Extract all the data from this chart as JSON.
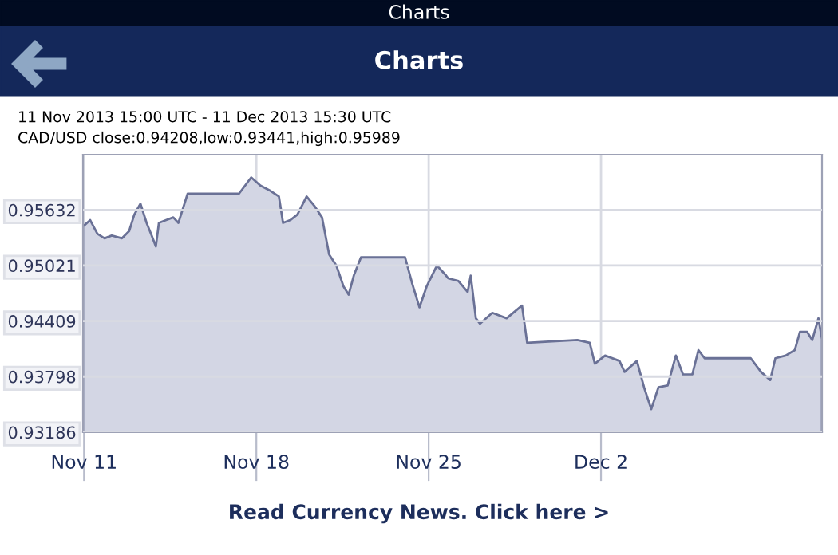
{
  "chart_data": {
    "type": "area",
    "title": "Charts",
    "subtitle": "11 Nov 2013 15:00 UTC - 11 Dec 2013 15:30 UTC",
    "annotations": [
      "Charts",
      "CAD/USD close:0.94208,low:0.93441,high:0.95989",
      "Read Currency News. Click here >"
    ],
    "x": [
      "2013-11-11T15:00",
      "2013-11-11T16:00",
      "2013-11-11T22:00",
      "2013-11-12T05:00",
      "2013-11-12T12:00",
      "2013-11-12T19:00",
      "2013-11-13T05:00",
      "2013-11-13T12:00",
      "2013-11-13T17:00",
      "2013-11-13T23:00",
      "2013-11-14T05:00",
      "2013-11-14T10:00",
      "2013-11-14T14:00",
      "2013-11-14T17:00",
      "2013-11-15T00:00",
      "2013-11-15T07:00",
      "2013-11-15T12:00",
      "2013-11-15T21:00",
      "2013-11-17T23:00",
      "2013-11-18T11:00",
      "2013-11-18T20:00",
      "2013-11-19T06:00",
      "2013-11-19T14:00",
      "2013-11-19T18:00",
      "2013-11-20T01:00",
      "2013-11-20T08:00",
      "2013-11-20T17:00",
      "2013-11-21T01:00",
      "2013-11-21T08:00",
      "2013-11-21T15:00",
      "2013-11-21T22:00",
      "2013-11-22T05:00",
      "2013-11-22T10:00",
      "2013-11-22T15:00",
      "2013-11-22T22:00",
      "2013-11-24T17:00",
      "2013-11-25T00:00",
      "2013-11-25T07:00",
      "2013-11-25T14:00",
      "2013-11-26T00:00",
      "2013-11-26T09:00",
      "2013-11-26T11:00",
      "2013-11-26T21:00",
      "2013-11-27T06:00",
      "2013-11-27T09:00",
      "2013-11-27T14:00",
      "2013-11-27T18:00",
      "2013-11-28T06:00",
      "2013-11-28T20:00",
      "2013-11-29T11:00",
      "2013-11-29T16:00",
      "2013-12-01T17:00",
      "2013-12-02T05:00",
      "2013-12-02T10:00",
      "2013-12-02T20:00",
      "2013-12-03T10:00",
      "2013-12-03T15:00",
      "2013-12-04T03:00",
      "2013-12-04T10:00",
      "2013-12-04T17:00",
      "2013-12-05T00:00",
      "2013-12-05T09:00",
      "2013-12-05T17:00",
      "2013-12-06T00:00",
      "2013-12-06T09:00",
      "2013-12-06T15:00",
      "2013-12-06T21:00",
      "2013-12-08T18:00",
      "2013-12-09T04:00",
      "2013-12-09T13:00",
      "2013-12-09T18:00",
      "2013-12-10T04:00",
      "2013-12-10T13:00",
      "2013-12-10T18:00",
      "2013-12-11T01:00",
      "2013-12-11T06:00",
      "2013-12-11T12:00",
      "2013-12-11T15:30"
    ],
    "series": [
      {
        "color": "#6a7196",
        "values": [
          0.9546,
          0.9546,
          0.9552,
          0.9537,
          0.9532,
          0.9535,
          0.9532,
          0.954,
          0.9558,
          0.957,
          0.9549,
          0.9535,
          0.9523,
          0.9549,
          0.9552,
          0.9555,
          0.9549,
          0.9581,
          0.9581,
          0.9599,
          0.959,
          0.9584,
          0.9578,
          0.9549,
          0.9552,
          0.9558,
          0.9578,
          0.9567,
          0.9555,
          0.9514,
          0.9502,
          0.9479,
          0.947,
          0.9491,
          0.9511,
          0.9511,
          0.9482,
          0.9456,
          0.9479,
          0.9502,
          0.9491,
          0.9488,
          0.9485,
          0.9473,
          0.9491,
          0.9444,
          0.9438,
          0.945,
          0.9444,
          0.9458,
          0.9417,
          0.942,
          0.9417,
          0.9394,
          0.9403,
          0.9397,
          0.9385,
          0.9397,
          0.9368,
          0.9344,
          0.9368,
          0.937,
          0.9403,
          0.9382,
          0.9382,
          0.9409,
          0.94,
          0.94,
          0.9385,
          0.9376,
          0.94,
          0.9403,
          0.9409,
          0.9429,
          0.9429,
          0.942,
          0.9444,
          0.9421
        ]
      }
    ],
    "xlim": [
      "2013-11-11T15:00",
      "2013-12-11T15:30"
    ],
    "xticks": [
      {
        "value": "2013-11-11T16:00",
        "label": "Nov 11"
      },
      {
        "value": "2013-11-18T16:00",
        "label": "Nov 18"
      },
      {
        "value": "2013-11-25T16:00",
        "label": "Nov 25"
      },
      {
        "value": "2013-12-02T16:00",
        "label": "Dec 2"
      }
    ],
    "ylim": [
      0.93186,
      0.9624
    ],
    "yticks": [
      0.93186,
      0.93798,
      0.94409,
      0.95021,
      0.95632
    ],
    "grid": true
  }
}
